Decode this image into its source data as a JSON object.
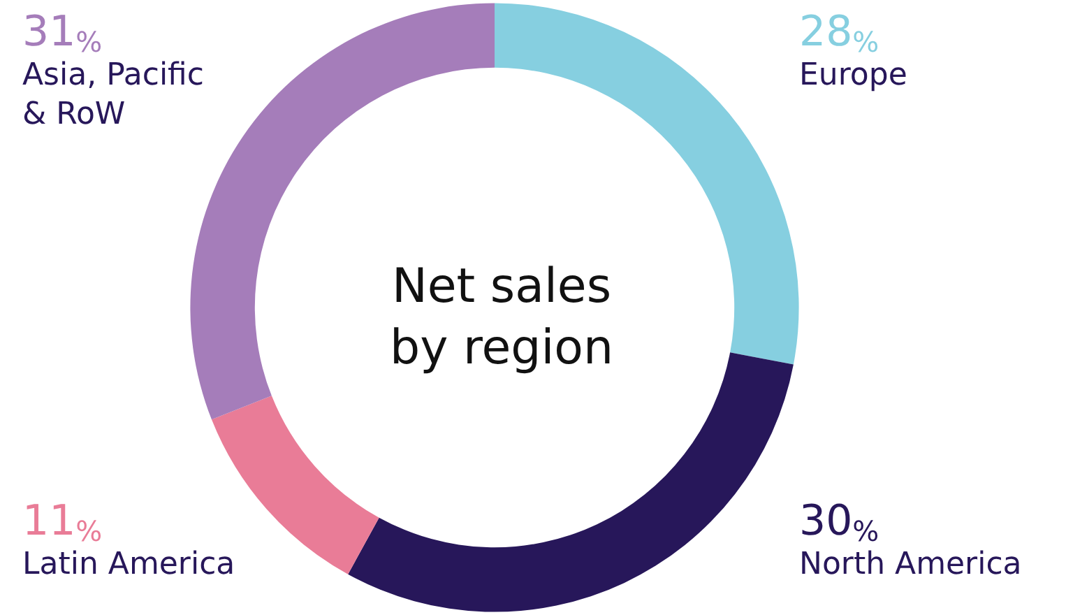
{
  "chart_data": {
    "type": "donut",
    "title": "Net sales\nby region",
    "categories": [
      "Europe",
      "North America",
      "Latin America",
      "Asia, Pacific\n& RoW"
    ],
    "values": [
      28,
      30,
      11,
      31
    ],
    "colors": [
      "#86cfe0",
      "#27175a",
      "#e97c97",
      "#a57dba"
    ],
    "value_labels": [
      "28%",
      "30%",
      "11%",
      "31%"
    ],
    "legend": false
  }
}
